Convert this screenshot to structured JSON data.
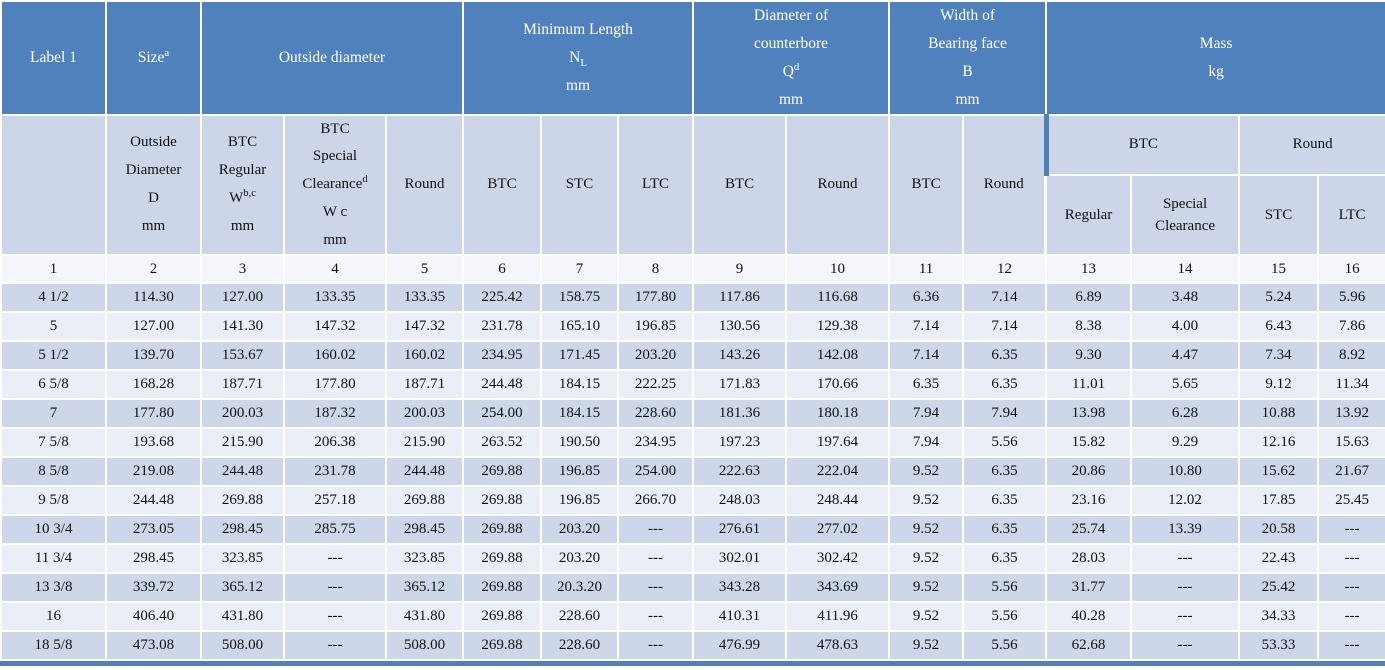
{
  "colors": {
    "header_blue": "#4f81bd",
    "subheader_bg": "#ccd6e8",
    "row_dark": "#cdd7e9",
    "row_light": "#e9eef7",
    "numbers_row_bg": "#f4f6fb",
    "grid_line": "#ffffff"
  },
  "header": {
    "top": [
      {
        "name": "label1",
        "lines": [
          "Label 1"
        ]
      },
      {
        "name": "size",
        "lines": [
          "Size^{a}"
        ]
      },
      {
        "name": "outside-diameter",
        "lines": [
          "Outside diameter"
        ]
      },
      {
        "name": "minimum-length",
        "lines": [
          "Minimum Length",
          "N_{L}",
          "mm"
        ]
      },
      {
        "name": "counterbore",
        "lines": [
          "Diameter   of",
          "counterbore",
          "Q^{d}",
          "mm"
        ]
      },
      {
        "name": "bearing-face",
        "lines": [
          "Width of",
          "Bearing face",
          "B",
          "mm"
        ]
      },
      {
        "name": "mass",
        "lines": [
          "Mass",
          "kg"
        ]
      }
    ],
    "sub": [
      {
        "lines": [
          ""
        ]
      },
      {
        "lines": [
          "Outside",
          "Diameter",
          "D",
          "mm"
        ]
      },
      {
        "lines": [
          "BTC",
          "Regular",
          "W^{b,c}",
          "mm"
        ]
      },
      {
        "lines": [
          "BTC",
          "Special",
          "Clearance^{d}",
          "W c",
          "mm"
        ]
      },
      {
        "lines": [
          "Round"
        ]
      },
      {
        "lines": [
          "BTC"
        ]
      },
      {
        "lines": [
          "STC"
        ]
      },
      {
        "lines": [
          "LTC"
        ]
      },
      {
        "lines": [
          "BTC"
        ]
      },
      {
        "lines": [
          "Round"
        ]
      },
      {
        "lines": [
          "BTC"
        ]
      },
      {
        "lines": [
          "Round"
        ]
      }
    ],
    "mass_groups": [
      {
        "lines": [
          "BTC"
        ]
      },
      {
        "lines": [
          "Round"
        ]
      }
    ],
    "mass_sub": [
      {
        "lines": [
          "Regular"
        ]
      },
      {
        "lines": [
          "Special",
          "Clearance"
        ]
      },
      {
        "lines": [
          "STC"
        ]
      },
      {
        "lines": [
          "LTC"
        ]
      }
    ]
  },
  "column_numbers": [
    "1",
    "2",
    "3",
    "4",
    "5",
    "6",
    "7",
    "8",
    "9",
    "10",
    "11",
    "12",
    "13",
    "14",
    "15",
    "16"
  ],
  "rows": [
    [
      "4 1/2",
      "114.30",
      "127.00",
      "133.35",
      "133.35",
      "225.42",
      "158.75",
      "177.80",
      "117.86",
      "116.68",
      "6.36",
      "7.14",
      "6.89",
      "3.48",
      "5.24",
      "5.96"
    ],
    [
      "5",
      "127.00",
      "141.30",
      "147.32",
      "147.32",
      "231.78",
      "165.10",
      "196.85",
      "130.56",
      "129.38",
      "7.14",
      "7.14",
      "8.38",
      "4.00",
      "6.43",
      "7.86"
    ],
    [
      "5 1/2",
      "139.70",
      "153.67",
      "160.02",
      "160.02",
      "234.95",
      "171.45",
      "203.20",
      "143.26",
      "142.08",
      "7.14",
      "6.35",
      "9.30",
      "4.47",
      "7.34",
      "8.92"
    ],
    [
      "6 5/8",
      "168.28",
      "187.71",
      "177.80",
      "187.71",
      "244.48",
      "184.15",
      "222.25",
      "171.83",
      "170.66",
      "6.35",
      "6.35",
      "11.01",
      "5.65",
      "9.12",
      "11.34"
    ],
    [
      "7",
      "177.80",
      "200.03",
      "187.32",
      "200.03",
      "254.00",
      "184.15",
      "228.60",
      "181.36",
      "180.18",
      "7.94",
      "7.94",
      "13.98",
      "6.28",
      "10.88",
      "13.92"
    ],
    [
      "7 5/8",
      "193.68",
      "215.90",
      "206.38",
      "215.90",
      "263.52",
      "190.50",
      "234.95",
      "197.23",
      "197.64",
      "7.94",
      "5.56",
      "15.82",
      "9.29",
      "12.16",
      "15.63"
    ],
    [
      "8 5/8",
      "219.08",
      "244.48",
      "231.78",
      "244.48",
      "269.88",
      "196.85",
      "254.00",
      "222.63",
      "222.04",
      "9.52",
      "6.35",
      "20.86",
      "10.80",
      "15.62",
      "21.67"
    ],
    [
      "9 5/8",
      "244.48",
      "269.88",
      "257.18",
      "269.88",
      "269.88",
      "196.85",
      "266.70",
      "248.03",
      "248.44",
      "9.52",
      "6.35",
      "23.16",
      "12.02",
      "17.85",
      "25.45"
    ],
    [
      "10 3/4",
      "273.05",
      "298.45",
      "285.75",
      "298.45",
      "269.88",
      "203.20",
      "---",
      "276.61",
      "277.02",
      "9.52",
      "6.35",
      "25.74",
      "13.39",
      "20.58",
      "---"
    ],
    [
      "11 3/4",
      "298.45",
      "323.85",
      "---",
      "323.85",
      "269.88",
      "203.20",
      "---",
      "302.01",
      "302.42",
      "9.52",
      "6.35",
      "28.03",
      "---",
      "22.43",
      "---"
    ],
    [
      "13 3/8",
      "339.72",
      "365.12",
      "---",
      "365.12",
      "269.88",
      "20.3.20",
      "---",
      "343.28",
      "343.69",
      "9.52",
      "5.56",
      "31.77",
      "---",
      "25.42",
      "---"
    ],
    [
      "16",
      "406.40",
      "431.80",
      "---",
      "431.80",
      "269.88",
      "228.60",
      "---",
      "410.31",
      "411.96",
      "9.52",
      "5.56",
      "40.28",
      "---",
      "34.33",
      "---"
    ],
    [
      "18 5/8",
      "473.08",
      "508.00",
      "---",
      "508.00",
      "269.88",
      "228.60",
      "---",
      "476.99",
      "478.63",
      "9.52",
      "5.56",
      "62.68",
      "---",
      "53.33",
      "---"
    ]
  ]
}
